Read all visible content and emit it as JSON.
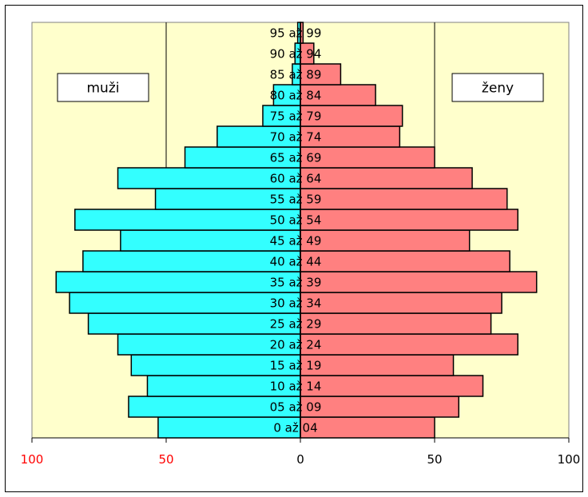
{
  "chart_data": {
    "type": "bar",
    "orientation": "horizontal-population-pyramid",
    "categories": [
      "0  až 04",
      "05 až 09",
      "10 až 14",
      "15 až 19",
      "20 až 24",
      "25 až 29",
      "30 až 34",
      "35 až 39",
      "40 až 44",
      "45 až 49",
      "50 až 54",
      "55 až 59",
      "60 až 64",
      "65 až 69",
      "70 až 74",
      "75 až 79",
      "80 až 84",
      "85 až 89",
      "90 až 94",
      "95 až 99"
    ],
    "series": [
      {
        "name": "muži",
        "side": "left",
        "color": "#33FFFF",
        "values": [
          53,
          64,
          57,
          63,
          68,
          79,
          86,
          91,
          81,
          67,
          84,
          54,
          68,
          43,
          31,
          14,
          10,
          3,
          2,
          1
        ]
      },
      {
        "name": "ženy",
        "side": "right",
        "color": "#FF8080",
        "values": [
          50,
          59,
          68,
          57,
          81,
          71,
          75,
          88,
          78,
          63,
          81,
          77,
          64,
          50,
          37,
          38,
          28,
          15,
          5,
          1
        ]
      }
    ],
    "xlim": [
      -100,
      100
    ],
    "x_ticks": [
      {
        "value": -100,
        "label": "100",
        "color": "#FF0000"
      },
      {
        "value": -50,
        "label": "50",
        "color": "#FF0000"
      },
      {
        "value": 0,
        "label": "0",
        "color": "#000000"
      },
      {
        "value": 50,
        "label": "50",
        "color": "#000000"
      },
      {
        "value": 100,
        "label": "100",
        "color": "#000000"
      }
    ],
    "gridlines_at": [
      -50,
      50
    ],
    "plot_background": "#FFFFCC",
    "legend_boxes": [
      "muži",
      "ženy"
    ],
    "legend_placement": "top-left and top-right inside plot"
  }
}
